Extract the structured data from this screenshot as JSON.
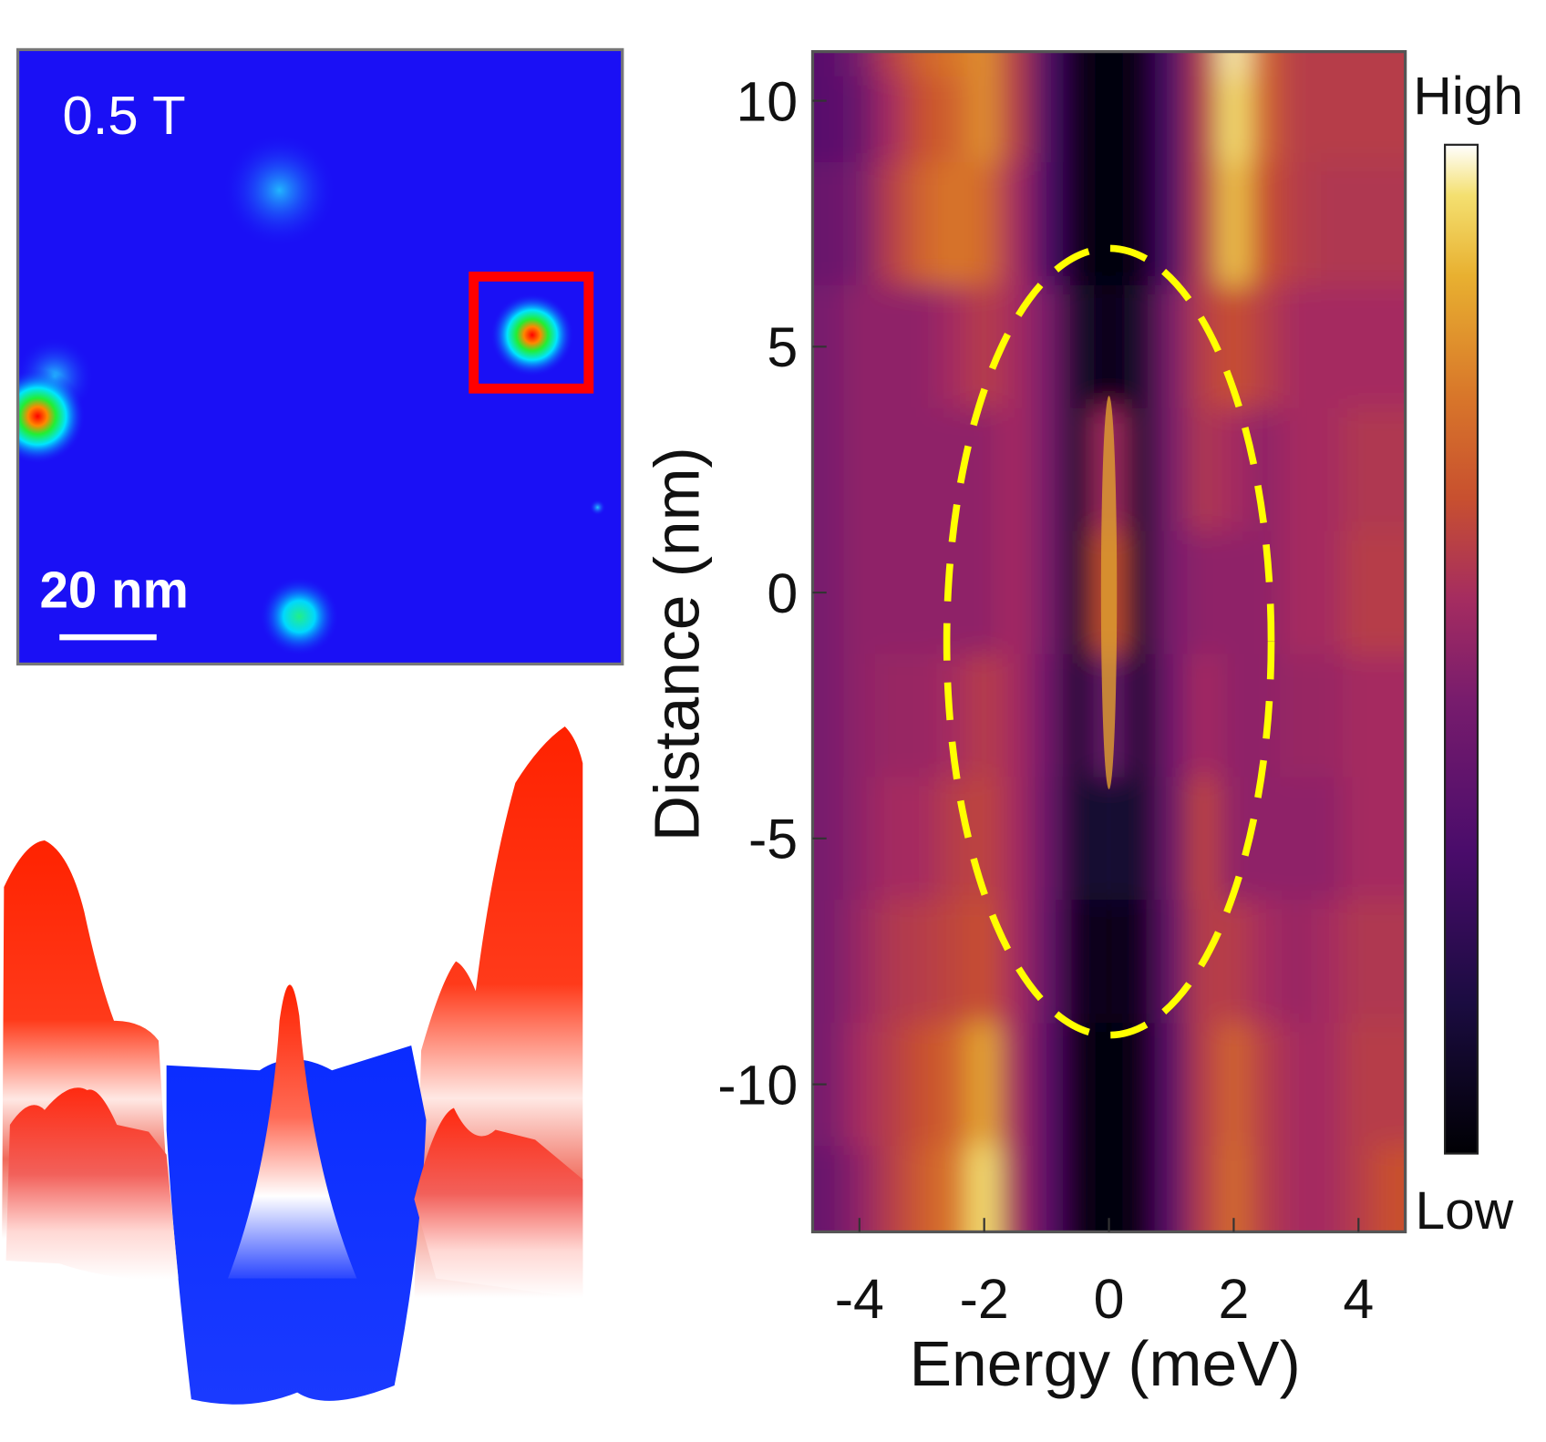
{
  "image_panel": {
    "field_label": "0.5 T",
    "scale_bar_label": "20 nm",
    "highlight_box_color": "#ff0000",
    "background_color": "#1a10f5"
  },
  "surface_plot": {
    "colors": {
      "high": "#ff2200",
      "mid": "#ffffff",
      "low": "#0a2cff"
    }
  },
  "chart_data": {
    "type": "heatmap",
    "xlabel": "Energy (meV)",
    "ylabel": "Distance (nm)",
    "xlim": [
      -4.75,
      4.75
    ],
    "ylim": [
      -13,
      11
    ],
    "x_ticks": [
      "-4",
      "-2",
      "0",
      "2",
      "4"
    ],
    "x_tick_values": [
      -4,
      -2,
      0,
      2,
      4
    ],
    "y_ticks": [
      "10",
      "5",
      "0",
      "-5",
      "-10"
    ],
    "y_tick_values": [
      10,
      5,
      0,
      -5,
      -10
    ],
    "colorbar": {
      "high_label": "High",
      "low_label": "Low",
      "colormap": "inferno"
    },
    "annotation": {
      "shape": "dashed-ellipse",
      "color": "#ffff00",
      "center": [
        0,
        -1
      ],
      "half_width_meV": 2.6,
      "half_height_nm": 8
    },
    "x": [
      -4.5,
      -4,
      -3.5,
      -3,
      -2.5,
      -2,
      -1.5,
      -1,
      -0.5,
      0,
      0.5,
      1,
      1.5,
      2,
      2.5,
      3,
      3.5,
      4,
      4.5
    ],
    "y": [
      11,
      10,
      7.5,
      5,
      2.5,
      0,
      -2.5,
      -5,
      -7.5,
      -10,
      -12.5
    ],
    "values": [
      [
        0.35,
        0.45,
        0.6,
        0.7,
        0.75,
        0.8,
        0.6,
        0.3,
        0.05,
        0.02,
        0.05,
        0.3,
        0.6,
        0.97,
        0.7,
        0.6,
        0.6,
        0.6,
        0.6
      ],
      [
        0.35,
        0.4,
        0.55,
        0.65,
        0.7,
        0.8,
        0.6,
        0.3,
        0.05,
        0.02,
        0.05,
        0.3,
        0.6,
        0.95,
        0.7,
        0.6,
        0.6,
        0.6,
        0.6
      ],
      [
        0.4,
        0.45,
        0.6,
        0.7,
        0.75,
        0.72,
        0.55,
        0.3,
        0.05,
        0.03,
        0.05,
        0.3,
        0.6,
        0.9,
        0.65,
        0.6,
        0.58,
        0.58,
        0.58
      ],
      [
        0.45,
        0.5,
        0.5,
        0.5,
        0.55,
        0.6,
        0.55,
        0.45,
        0.1,
        0.05,
        0.1,
        0.45,
        0.6,
        0.65,
        0.6,
        0.55,
        0.55,
        0.55,
        0.55
      ],
      [
        0.45,
        0.5,
        0.5,
        0.5,
        0.5,
        0.5,
        0.55,
        0.45,
        0.1,
        0.55,
        0.1,
        0.45,
        0.58,
        0.55,
        0.5,
        0.55,
        0.55,
        0.58,
        0.58
      ],
      [
        0.45,
        0.5,
        0.5,
        0.5,
        0.5,
        0.5,
        0.55,
        0.45,
        0.1,
        0.65,
        0.1,
        0.45,
        0.5,
        0.5,
        0.5,
        0.55,
        0.55,
        0.6,
        0.6
      ],
      [
        0.45,
        0.5,
        0.52,
        0.52,
        0.55,
        0.6,
        0.55,
        0.42,
        0.1,
        0.4,
        0.1,
        0.42,
        0.55,
        0.5,
        0.5,
        0.52,
        0.52,
        0.55,
        0.55
      ],
      [
        0.45,
        0.5,
        0.55,
        0.55,
        0.6,
        0.62,
        0.55,
        0.4,
        0.1,
        0.12,
        0.1,
        0.4,
        0.62,
        0.5,
        0.5,
        0.5,
        0.5,
        0.55,
        0.55
      ],
      [
        0.45,
        0.52,
        0.58,
        0.6,
        0.62,
        0.65,
        0.55,
        0.38,
        0.07,
        0.04,
        0.07,
        0.38,
        0.6,
        0.6,
        0.55,
        0.52,
        0.55,
        0.58,
        0.58
      ],
      [
        0.45,
        0.55,
        0.6,
        0.65,
        0.7,
        0.85,
        0.55,
        0.35,
        0.05,
        0.02,
        0.05,
        0.35,
        0.6,
        0.7,
        0.6,
        0.55,
        0.55,
        0.6,
        0.6
      ],
      [
        0.4,
        0.5,
        0.6,
        0.68,
        0.75,
        0.95,
        0.55,
        0.35,
        0.05,
        0.02,
        0.05,
        0.35,
        0.6,
        0.72,
        0.6,
        0.55,
        0.55,
        0.6,
        0.65
      ]
    ]
  }
}
